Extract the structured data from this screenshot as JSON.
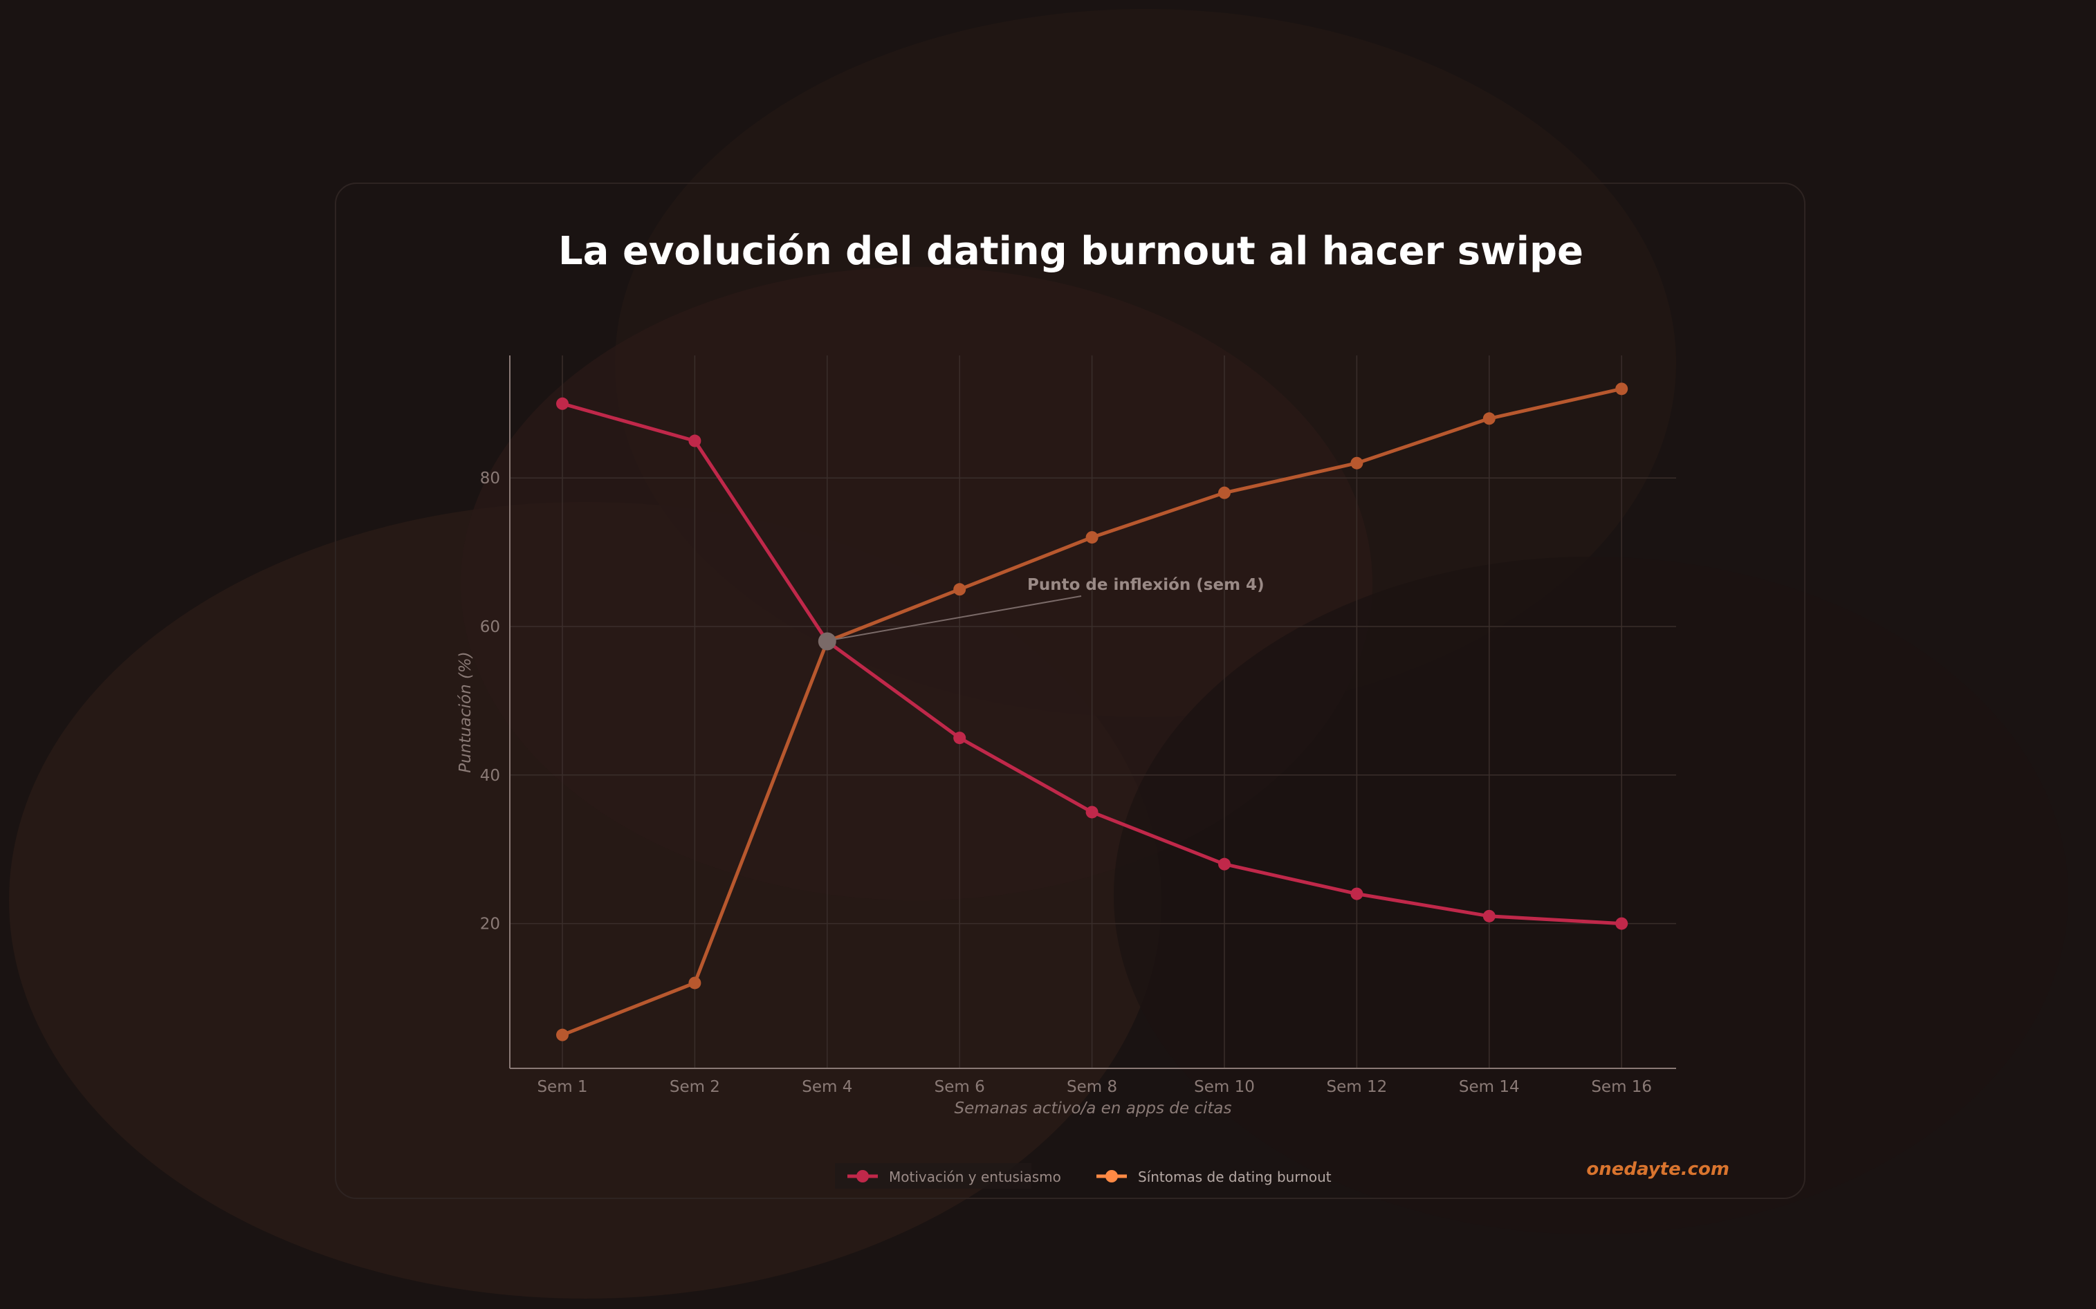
{
  "chart_data": {
    "type": "line",
    "title": "La evolución del dating burnout al hacer swipe",
    "xlabel": "Semanas activo/a en apps de citas",
    "ylabel": "Puntuación (%)",
    "categories": [
      "Sem 1",
      "Sem 2",
      "Sem 4",
      "Sem 6",
      "Sem 8",
      "Sem 10",
      "Sem 12",
      "Sem 14",
      "Sem 16"
    ],
    "yticks": [
      "20",
      "40",
      "60",
      "80"
    ],
    "ylim": [
      0.5,
      96.5
    ],
    "grid": true,
    "legend_position": "bottom-center",
    "series": [
      {
        "name": "Motivación y entusiasmo",
        "color": "#c0284a",
        "values": [
          90,
          85,
          58,
          45,
          35,
          28,
          24,
          21,
          20
        ]
      },
      {
        "name": "Síntomas de dating burnout",
        "color": "#b8582e",
        "values": [
          5,
          12,
          58,
          65,
          72,
          78,
          82,
          88,
          92
        ]
      }
    ],
    "annotation": {
      "text": "Punto de inflexión (sem 4)",
      "category": "Sem 4",
      "value": 58,
      "color": "#7a6a68"
    },
    "watermark": "onedayte.com",
    "colors": {
      "background": "#1a1312",
      "text": "#ffffff",
      "watermark": "#d9742e",
      "axis_text": "#8a7a76"
    }
  }
}
